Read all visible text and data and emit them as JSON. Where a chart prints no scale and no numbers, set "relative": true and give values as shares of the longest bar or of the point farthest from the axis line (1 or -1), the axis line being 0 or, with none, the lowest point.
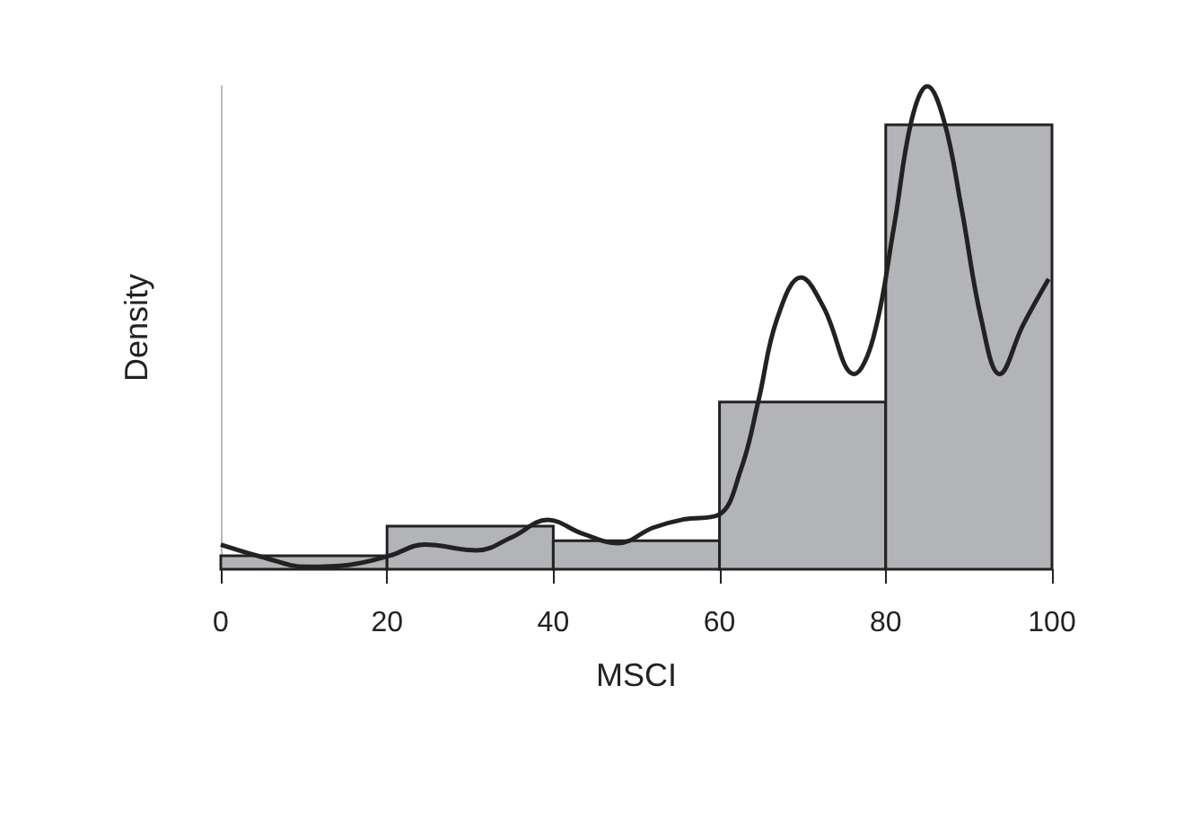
{
  "chart_data": {
    "type": "histogram",
    "xlabel": "MSCI",
    "ylabel": "Density",
    "relative": true,
    "bins": [
      0,
      20,
      40,
      60,
      80,
      100
    ],
    "xlim": [
      0,
      100
    ],
    "xticks": [
      0,
      20,
      40,
      60,
      80,
      100
    ],
    "grid": false,
    "series": [
      {
        "color": "#b3b4b8",
        "values": [
          0.028,
          0.089,
          0.059,
          0.346,
          0.92
        ]
      },
      {
        "type": "line",
        "color": "#222222",
        "x": [
          0,
          4.8,
          10.4,
          15.4,
          20.3,
          24.5,
          30.8,
          35.1,
          39.3,
          43.6,
          47.8,
          52,
          55.6,
          59.8,
          62.6,
          64.7,
          66.9,
          69.8,
          72.5,
          76.2,
          78.5,
          81,
          83.1,
          85,
          87,
          89.1,
          91.5,
          93.7,
          96.5,
          99.6
        ],
        "values": [
          0.051,
          0.026,
          0.005,
          0.009,
          0.028,
          0.051,
          0.039,
          0.067,
          0.102,
          0.073,
          0.054,
          0.086,
          0.103,
          0.112,
          0.208,
          0.35,
          0.517,
          0.604,
          0.543,
          0.404,
          0.479,
          0.71,
          0.929,
          1,
          0.929,
          0.749,
          0.517,
          0.404,
          0.505,
          0.601
        ]
      }
    ]
  }
}
